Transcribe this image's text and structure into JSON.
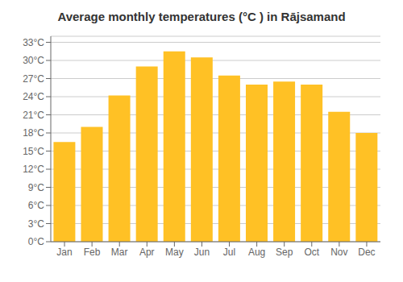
{
  "chart_data": {
    "type": "bar",
    "title": "Average monthly temperatures (°C ) in Rājsamand",
    "categories": [
      "Jan",
      "Feb",
      "Mar",
      "Apr",
      "May",
      "Jun",
      "Jul",
      "Aug",
      "Sep",
      "Oct",
      "Nov",
      "Dec"
    ],
    "values": [
      16.5,
      19.0,
      24.2,
      29.0,
      31.5,
      30.5,
      27.5,
      26.0,
      26.5,
      26.0,
      21.5,
      18.0
    ],
    "color": "#FFC125",
    "ylim": [
      0,
      34
    ],
    "yticks": [
      {
        "value": 0,
        "label": "0°C"
      },
      {
        "value": 3,
        "label": "3°C"
      },
      {
        "value": 6,
        "label": "6°C"
      },
      {
        "value": 9,
        "label": "9°C"
      },
      {
        "value": 12,
        "label": "12°C"
      },
      {
        "value": 15,
        "label": "15°C"
      },
      {
        "value": 18,
        "label": "18°C"
      },
      {
        "value": 21,
        "label": "21°C"
      },
      {
        "value": 24,
        "label": "24°C"
      },
      {
        "value": 27,
        "label": "27°C"
      },
      {
        "value": 30,
        "label": "30°C"
      },
      {
        "value": 33,
        "label": "33°C"
      }
    ],
    "grid": true
  }
}
